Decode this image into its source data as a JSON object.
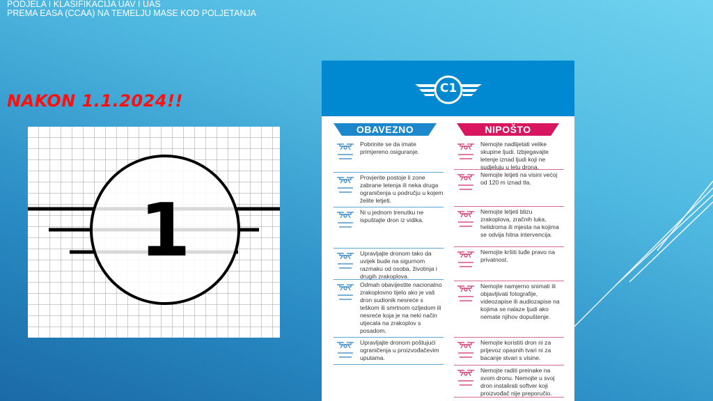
{
  "slide": {
    "title_line1": "PODJELA I KLASIFIKACIJA UAV I UAS",
    "title_line2": "PREMA EASA (CCAA) NA TEMELJU MASE KOD POLJETANJA",
    "highlight": "NAKON 1.1.2024!!",
    "class_symbol_number": "1"
  },
  "card": {
    "class_label": "C1",
    "header_color": "#0088d1",
    "must_title": "OBAVEZNO",
    "must_color": "#1d87cc",
    "never_title": "NIPOŠTO",
    "never_color": "#d8165f",
    "must_items": [
      {
        "icon": "insurance-shield-icon",
        "text": "Pobrinite se da imate primjereno osiguranje."
      },
      {
        "icon": "no-fly-zone-map-icon",
        "text": "Provjerite postoje li zone zabrane letenja ili neka druga ograničenja u području u kojem želite letjeti."
      },
      {
        "icon": "line-of-sight-icon",
        "text": "Ni u jednom trenutku ne ispuštajte dron iz vidika."
      },
      {
        "icon": "safe-distance-icon",
        "text": "Upravljajte dronom tako da uvijek bude na sigurnom razmaku od osoba, životinja i drugih zrakoplova."
      },
      {
        "icon": "accident-report-icon",
        "text": "Odmah obavijestite nacionalno zrakoplovno tijelo ako je vaš dron sudionik nesreće s teškom ili smrtnom ozljedom ili nesreće koja je na neki način utjecala na zrakoplov s posadom."
      },
      {
        "icon": "manufacturer-limits-icon",
        "text": "Upravljajte dronom poštujući ograničenja u proizvođačevim uputama."
      }
    ],
    "never_items": [
      {
        "icon": "crowd-icon",
        "text": "Nemojte nadlijetati velike skupine ljudi. Izbjegavajte letenje iznad ljudi koji ne sudjeluju u letu drona."
      },
      {
        "icon": "altitude-icon",
        "text": "Nemojte letjeti na visini većoj od 120 m iznad tla."
      },
      {
        "icon": "airport-icon",
        "text": "Nemojte letjeti blizu zrakoplova, zračnih luka, helidroma ili mjesta na kojima se odvija hitna intervencija."
      },
      {
        "icon": "privacy-house-icon",
        "text": "Nemojte kršiti tuđe pravo na privatnost."
      },
      {
        "icon": "camera-drone-icon",
        "text": "Nemojte namjerno snimati ili objavljivati fotografije, videozapise ili audiozapise na kojima se nalaze ljudi ako nemate njihov dopuštenje."
      },
      {
        "icon": "dangerous-goods-icon",
        "text": "Nemojte koristiti dron ni za prijevoz opasnih tvari ni za bacanje stvari s visine."
      },
      {
        "icon": "modification-icon",
        "text": "Nemojte raditi preinake na svom dronu. Nemojte u svoj dron instalirati softver koji proizvođač nije preporučio."
      }
    ]
  }
}
